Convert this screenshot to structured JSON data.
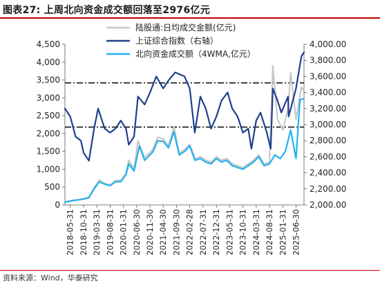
{
  "figure": {
    "title": "图表27:  上周北向资金成交额回落至2976亿元",
    "source": "资料来源：Wind，华泰研究"
  },
  "colors": {
    "brand_red": "#c00000",
    "daily_turnover": "#c8c8c8",
    "sse_index": "#1f3f8c",
    "wma4": "#22b2ee",
    "reference_lines": "#111111"
  },
  "chart_data": {
    "type": "line",
    "legend": [
      "陆股通:日均成交金额(亿元)",
      "上证综合指数（右轴）",
      "北向资金成交额（4WMA,亿元）"
    ],
    "legend_position": "top-center",
    "y_left": {
      "ylim": [
        0,
        4500
      ],
      "ticks": [
        "0",
        "500",
        "1,000",
        "1,500",
        "2,000",
        "2,500",
        "3,000",
        "3,500",
        "4,000",
        "4,500"
      ]
    },
    "y_right": {
      "ylim": [
        2000,
        4000
      ],
      "ticks": [
        "2,000.00",
        "2,200.00",
        "2,400.00",
        "2,600.00",
        "2,800.00",
        "3,000.00",
        "3,200.00",
        "3,400.00",
        "3,600.00",
        "3,800.00",
        "4,000.00"
      ]
    },
    "x_range": [
      "2018-03-31",
      "2025-09-30"
    ],
    "x_ticks": [
      "2018-05-31",
      "2018-10-31",
      "2019-03-31",
      "2019-08-31",
      "2020-01-31",
      "2020-06-30",
      "2020-11-30",
      "2021-04-30",
      "2021-09-30",
      "2022-02-28",
      "2022-07-31",
      "2022-12-31",
      "2023-05-31",
      "2023-10-31",
      "2024-03-31",
      "2024-08-31",
      "2025-01-31",
      "2025-06-30"
    ],
    "reference_lines_left_axis": [
      3420,
      2180
    ],
    "grid": false,
    "series": [
      {
        "name": "陆股通:日均成交金额(亿元)",
        "axis": "left",
        "x": [
          "2018-03-31",
          "2018-06-30",
          "2018-09-30",
          "2018-12-31",
          "2019-02-28",
          "2019-04-30",
          "2019-06-30",
          "2019-08-31",
          "2019-10-31",
          "2019-12-31",
          "2020-02-29",
          "2020-03-31",
          "2020-05-31",
          "2020-07-15",
          "2020-09-30",
          "2020-12-31",
          "2021-02-28",
          "2021-04-30",
          "2021-06-30",
          "2021-08-31",
          "2021-10-31",
          "2021-12-31",
          "2022-02-28",
          "2022-04-30",
          "2022-06-30",
          "2022-08-31",
          "2022-10-31",
          "2022-12-31",
          "2023-02-28",
          "2023-04-30",
          "2023-06-30",
          "2023-08-31",
          "2023-10-31",
          "2023-12-31",
          "2024-02-29",
          "2024-04-30",
          "2024-06-30",
          "2024-08-31",
          "2024-10-08",
          "2024-11-30",
          "2025-01-31",
          "2025-03-31",
          "2025-04-30",
          "2025-06-30",
          "2025-08-31",
          "2025-09-30"
        ],
        "values": [
          90,
          130,
          160,
          220,
          480,
          700,
          600,
          560,
          680,
          680,
          900,
          1250,
          1000,
          1800,
          1320,
          1550,
          1900,
          1850,
          1650,
          2200,
          1450,
          1550,
          1700,
          1300,
          1350,
          1250,
          1200,
          1350,
          1250,
          1300,
          1150,
          1100,
          1050,
          1150,
          1250,
          1400,
          1150,
          1200,
          3900,
          2400,
          2100,
          2700,
          3700,
          2400,
          3300,
          3200
        ]
      },
      {
        "name": "上证综合指数（右轴）",
        "axis": "right",
        "x": [
          "2018-03-31",
          "2018-05-31",
          "2018-07-31",
          "2018-09-30",
          "2018-10-31",
          "2018-12-31",
          "2019-02-28",
          "2019-04-15",
          "2019-06-30",
          "2019-08-31",
          "2019-10-31",
          "2019-12-31",
          "2020-02-29",
          "2020-03-31",
          "2020-05-31",
          "2020-07-15",
          "2020-09-30",
          "2020-11-30",
          "2021-02-10",
          "2021-04-30",
          "2021-06-30",
          "2021-09-15",
          "2021-12-31",
          "2022-02-28",
          "2022-04-27",
          "2022-06-30",
          "2022-08-31",
          "2022-10-31",
          "2022-12-31",
          "2023-02-28",
          "2023-05-08",
          "2023-06-30",
          "2023-08-31",
          "2023-10-31",
          "2023-12-31",
          "2024-02-05",
          "2024-03-31",
          "2024-05-20",
          "2024-07-31",
          "2024-09-13",
          "2024-10-08",
          "2024-11-30",
          "2025-01-13",
          "2025-03-31",
          "2025-04-07",
          "2025-06-30",
          "2025-08-31",
          "2025-09-30"
        ],
        "values": [
          3200,
          3100,
          2850,
          2800,
          2650,
          2550,
          2950,
          3200,
          2950,
          2900,
          2950,
          3050,
          2950,
          2750,
          2850,
          3350,
          3250,
          3400,
          3600,
          3450,
          3550,
          3650,
          3600,
          3450,
          2900,
          3350,
          3200,
          2950,
          3100,
          3300,
          3400,
          3200,
          3100,
          2900,
          2950,
          2700,
          3050,
          3150,
          2900,
          2700,
          3450,
          3300,
          3150,
          3350,
          3100,
          3450,
          3850,
          3900
        ]
      },
      {
        "name": "北向资金成交额（4WMA,亿元）",
        "axis": "left",
        "x": [
          "2018-03-31",
          "2018-06-30",
          "2018-09-30",
          "2018-12-31",
          "2019-02-28",
          "2019-04-30",
          "2019-06-30",
          "2019-08-31",
          "2019-10-31",
          "2019-12-31",
          "2020-02-29",
          "2020-03-31",
          "2020-05-31",
          "2020-07-31",
          "2020-09-30",
          "2020-12-31",
          "2021-02-28",
          "2021-04-30",
          "2021-06-30",
          "2021-08-31",
          "2021-10-31",
          "2021-12-31",
          "2022-02-28",
          "2022-04-30",
          "2022-06-30",
          "2022-08-31",
          "2022-10-31",
          "2022-12-31",
          "2023-02-28",
          "2023-04-30",
          "2023-06-30",
          "2023-08-31",
          "2023-10-31",
          "2023-12-31",
          "2024-02-29",
          "2024-04-30",
          "2024-06-30",
          "2024-08-31",
          "2024-10-31",
          "2024-12-31",
          "2025-02-28",
          "2025-03-31",
          "2025-04-30",
          "2025-06-30",
          "2025-08-15",
          "2025-09-30"
        ],
        "values": [
          80,
          120,
          150,
          200,
          450,
          650,
          580,
          540,
          650,
          650,
          850,
          1150,
          950,
          1650,
          1250,
          1480,
          1800,
          1780,
          1600,
          2050,
          1400,
          1500,
          1650,
          1250,
          1300,
          1200,
          1150,
          1300,
          1200,
          1250,
          1100,
          1050,
          1000,
          1100,
          1200,
          1350,
          1100,
          1150,
          1400,
          1300,
          1500,
          1800,
          2100,
          1300,
          2950,
          2976
        ]
      }
    ]
  }
}
